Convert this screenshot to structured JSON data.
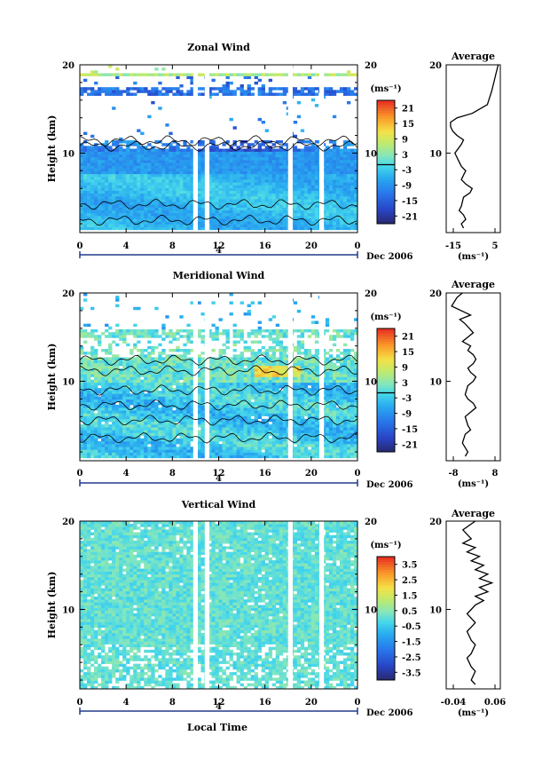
{
  "figure": {
    "bottom_label": "Local Time",
    "date_label": "Dec 2006",
    "day_label": "4"
  },
  "chart_data": [
    {
      "type": "heatmap",
      "title": "Zonal Wind",
      "xlabel": "",
      "ylabel": "Height (km)",
      "x_ticks": [
        "0",
        "4",
        "8",
        "12",
        "16",
        "20",
        "0"
      ],
      "xlim": [
        0,
        24
      ],
      "y_ticks": [
        "20",
        "10"
      ],
      "ylim": [
        1,
        20
      ],
      "colorbar": {
        "unit": "(ms⁻¹)",
        "ticks": [
          "21",
          "15",
          "9",
          "3",
          "-3",
          "-9",
          "-15",
          "-21"
        ],
        "range": [
          -24,
          24
        ]
      },
      "data_gaps_hours": [
        [
          9.8,
          10.2
        ],
        [
          10.8,
          11.2
        ],
        [
          18.0,
          18.4
        ],
        [
          20.7,
          21.1
        ]
      ],
      "average_profile": {
        "title": "Average",
        "x_ticks": [
          "-15",
          "5"
        ],
        "xlim": [
          -17,
          8
        ],
        "y_ticks": [
          "20",
          "10"
        ],
        "unit": "(ms⁻¹)",
        "x": [
          -9,
          -10,
          -8,
          -9,
          -11,
          -10,
          -9,
          -6,
          -5,
          -8,
          -10,
          -9,
          -8,
          -10,
          -11,
          -12,
          -13,
          -10,
          -9,
          -12,
          -14,
          -15,
          -15,
          -12,
          -5,
          2,
          4,
          5,
          6,
          7
        ],
        "y": [
          1.5,
          2.0,
          2.5,
          3.0,
          3.5,
          4.0,
          5.0,
          5.5,
          6.0,
          6.5,
          7.0,
          7.5,
          8.0,
          8.5,
          9.0,
          9.5,
          10.0,
          11.0,
          11.5,
          12.0,
          12.5,
          13.0,
          13.5,
          14.0,
          14.5,
          15.5,
          17.0,
          18.0,
          19.0,
          20.0
        ]
      }
    },
    {
      "type": "heatmap",
      "title": "Meridional Wind",
      "xlabel": "",
      "ylabel": "Height (km)",
      "x_ticks": [
        "0",
        "4",
        "8",
        "12",
        "16",
        "20",
        "0"
      ],
      "xlim": [
        0,
        24
      ],
      "y_ticks": [
        "20",
        "10"
      ],
      "ylim": [
        1,
        20
      ],
      "colorbar": {
        "unit": "(ms⁻¹)",
        "ticks": [
          "21",
          "15",
          "9",
          "3",
          "-3",
          "-9",
          "-15",
          "-21"
        ],
        "range": [
          -24,
          24
        ]
      },
      "data_gaps_hours": [
        [
          9.8,
          10.2
        ],
        [
          10.8,
          11.2
        ],
        [
          18.0,
          18.4
        ],
        [
          20.7,
          21.1
        ]
      ],
      "average_profile": {
        "title": "Average",
        "x_ticks": [
          "-8",
          "8"
        ],
        "xlim": [
          -11,
          9
        ],
        "y_ticks": [
          "20",
          "10"
        ],
        "unit": "(ms⁻¹)",
        "x": [
          -4,
          -3,
          -5,
          -4,
          -2,
          -3,
          -4,
          -2,
          0,
          -1,
          -3,
          -4,
          -3,
          -1,
          0,
          -2,
          -3,
          -1,
          0,
          -1,
          -3,
          -2,
          -5,
          -3,
          -1,
          -4,
          -6,
          -2,
          -9,
          -7,
          -5
        ],
        "y": [
          1.5,
          2.0,
          3.0,
          4.0,
          4.5,
          5.0,
          6.0,
          6.5,
          7.0,
          7.5,
          8.0,
          8.5,
          9.5,
          10.0,
          10.5,
          11.0,
          11.5,
          12.0,
          12.5,
          13.0,
          13.5,
          14.0,
          14.5,
          15.0,
          15.5,
          16.5,
          17.0,
          17.5,
          18.5,
          19.5,
          20.0
        ]
      }
    },
    {
      "type": "heatmap",
      "title": "Vertical Wind",
      "xlabel": "Local Time",
      "ylabel": "Height (km)",
      "x_ticks": [
        "0",
        "4",
        "8",
        "12",
        "16",
        "20",
        "0"
      ],
      "xlim": [
        0,
        24
      ],
      "y_ticks": [
        "20",
        "10"
      ],
      "ylim": [
        1,
        20
      ],
      "colorbar": {
        "unit": "(ms⁻¹)",
        "ticks": [
          "3.5",
          "2.5",
          "1.5",
          "0.5",
          "-0.5",
          "-1.5",
          "-2.5",
          "-3.5"
        ],
        "range": [
          -4,
          4
        ]
      },
      "data_gaps_hours": [
        [
          9.8,
          10.2
        ],
        [
          10.8,
          11.2
        ],
        [
          18.0,
          18.4
        ],
        [
          20.7,
          21.1
        ]
      ],
      "average_profile": {
        "title": "Average",
        "x_ticks": [
          "-0.04",
          "0.06"
        ],
        "xlim": [
          -0.06,
          0.07
        ],
        "y_ticks": [
          "20",
          "10"
        ],
        "unit": "(ms⁻¹)",
        "x": [
          0.01,
          0.0,
          0.01,
          0.0,
          -0.01,
          0.0,
          0.01,
          0.0,
          -0.01,
          0.0,
          0.01,
          0.0,
          -0.01,
          0.0,
          0.01,
          0.03,
          0.01,
          0.04,
          0.02,
          0.05,
          0.02,
          0.04,
          0.01,
          0.03,
          0.0,
          0.02,
          -0.01,
          0.01,
          -0.02,
          0.0,
          -0.02,
          0.01
        ],
        "y": [
          1.5,
          2.0,
          3.0,
          3.5,
          4.5,
          5.0,
          6.0,
          6.5,
          7.5,
          8.0,
          8.5,
          9.0,
          9.5,
          10.0,
          10.5,
          11.0,
          11.5,
          12.0,
          12.5,
          13.0,
          13.5,
          14.0,
          14.5,
          15.0,
          15.5,
          16.0,
          16.5,
          17.0,
          17.5,
          18.0,
          19.0,
          20.0
        ]
      }
    }
  ]
}
